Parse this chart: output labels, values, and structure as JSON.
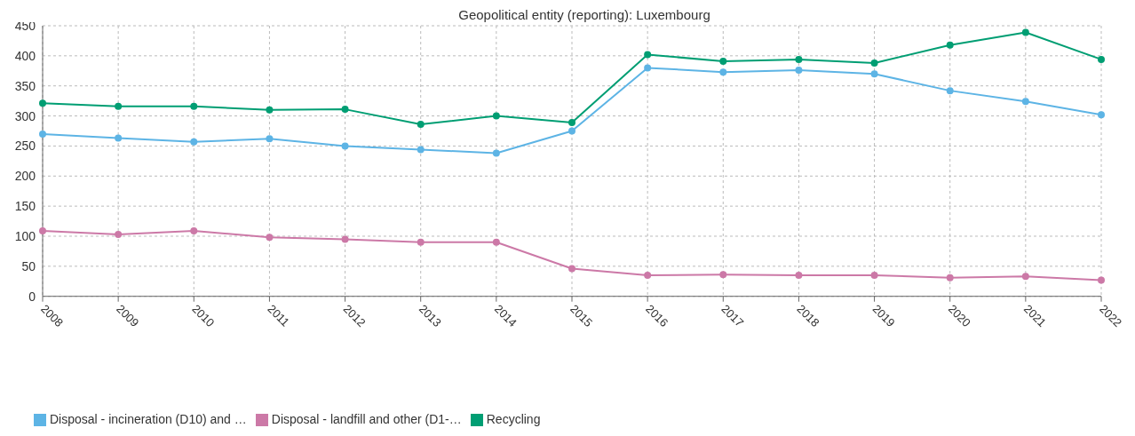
{
  "chart_data": {
    "type": "line",
    "title": "Geopolitical entity (reporting): Luxembourg",
    "categories": [
      "2008",
      "2009",
      "2010",
      "2011",
      "2012",
      "2013",
      "2014",
      "2015",
      "2016",
      "2017",
      "2018",
      "2019",
      "2020",
      "2021",
      "2022"
    ],
    "series": [
      {
        "name": "Disposal - incineration (D10) and …",
        "color": "#5db4e5",
        "values": [
          270,
          263,
          257,
          262,
          250,
          244,
          238,
          275,
          380,
          373,
          376,
          370,
          342,
          324,
          302
        ]
      },
      {
        "name": "Disposal - landfill and other (D1-…",
        "color": "#cc79a7",
        "values": [
          109,
          103,
          109,
          98,
          95,
          90,
          90,
          46,
          35,
          36,
          35,
          35,
          31,
          33,
          27
        ]
      },
      {
        "name": "Recycling",
        "color": "#009e73",
        "values": [
          321,
          316,
          316,
          310,
          311,
          286,
          300,
          289,
          402,
          391,
          394,
          388,
          418,
          439,
          394
        ]
      }
    ],
    "ylim": [
      0,
      450
    ],
    "yticks": [
      0,
      50,
      100,
      150,
      200,
      250,
      300,
      350,
      400,
      450
    ],
    "grid": true,
    "legend": "bottom left",
    "marker": "circle",
    "line_style": "solid"
  }
}
